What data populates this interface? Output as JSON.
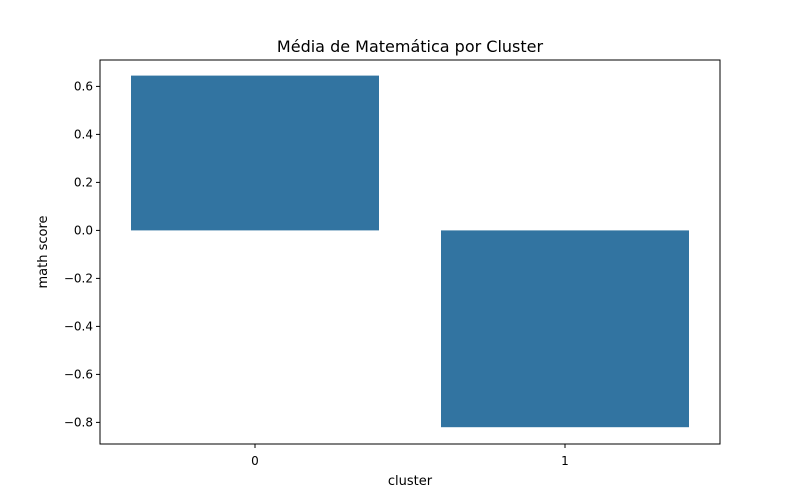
{
  "chart_data": {
    "type": "bar",
    "title": "Média de Matemática por Cluster",
    "xlabel": "cluster",
    "ylabel": "math score",
    "categories": [
      "0",
      "1"
    ],
    "values": [
      0.645,
      -0.82
    ],
    "ylim": [
      -0.89,
      0.71
    ],
    "yticks": [
      0.6,
      0.4,
      0.2,
      0.0,
      -0.2,
      -0.4,
      -0.6,
      -0.8
    ],
    "ytick_labels": [
      "0.6",
      "0.4",
      "0.2",
      "0.0",
      "−0.2",
      "−0.4",
      "−0.6",
      "−0.8"
    ],
    "grid": false,
    "bar_color": "#3274a1"
  }
}
